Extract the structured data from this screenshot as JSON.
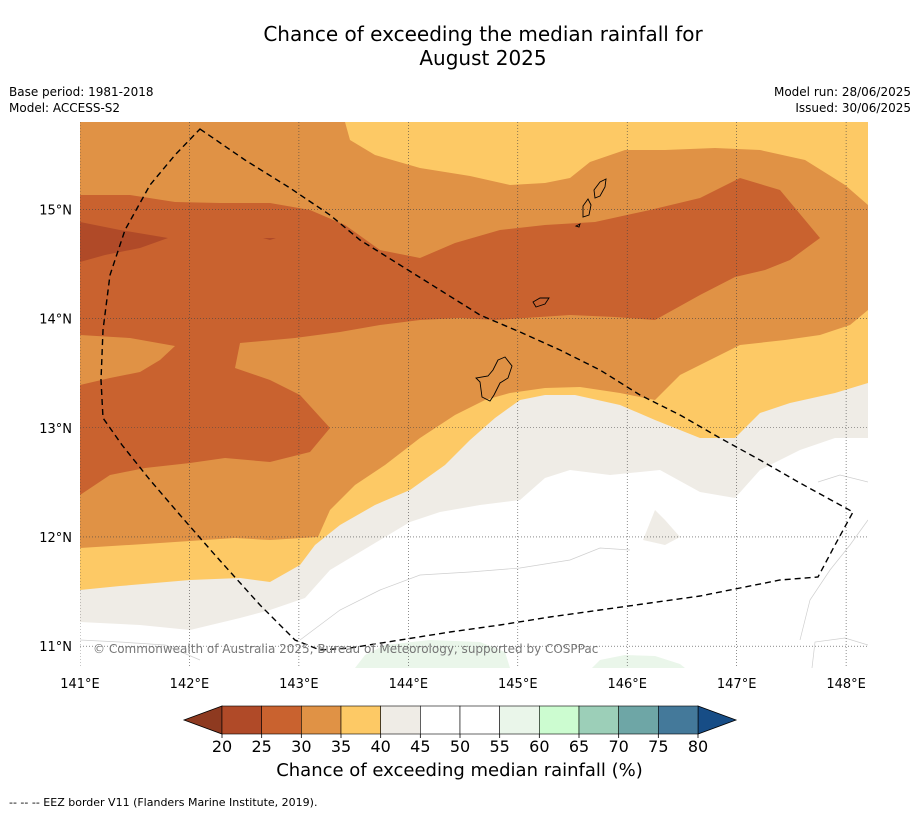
{
  "title_line1": "Chance of exceeding the median rainfall for",
  "title_line2": "August 2025",
  "base_period": "Base period: 1981-2018",
  "model": "Model: ACCESS-S2",
  "model_run": "Model run: 28/06/2025",
  "issued": "Issued: 30/06/2025",
  "copyright": "© Commonwealth of Australia 2025, Bureau of Meteorology, supported by COSPPac",
  "colorbar_label": "Chance of exceeding median rainfall (%)",
  "footnote": "--  --  -- EEZ border V11 (Flanders Marine Institute, 2019).",
  "map_data": {
    "lon_range": [
      141,
      148.2
    ],
    "lat_range": [
      10.8,
      15.8
    ],
    "lon_ticks": [
      "141°E",
      "142°E",
      "143°E",
      "144°E",
      "145°E",
      "146°E",
      "147°E",
      "148°E"
    ],
    "lat_ticks": [
      "15°N",
      "14°N",
      "13°N",
      "12°N",
      "11°N"
    ],
    "colorbar": {
      "ticks": [
        "20",
        "25",
        "30",
        "35",
        "40",
        "45",
        "50",
        "55",
        "60",
        "65",
        "70",
        "75",
        "80"
      ],
      "colors": [
        "#b04a28",
        "#c9622f",
        "#e09245",
        "#fdc965",
        "#efece6",
        "#ffffff",
        "#ffffff",
        "#eaf6ea",
        "#ccfcd0",
        "#9ccfb8",
        "#6ea6a6",
        "#44799a"
      ],
      "under_color": "#8e3a20",
      "over_color": "#174d86"
    }
  }
}
